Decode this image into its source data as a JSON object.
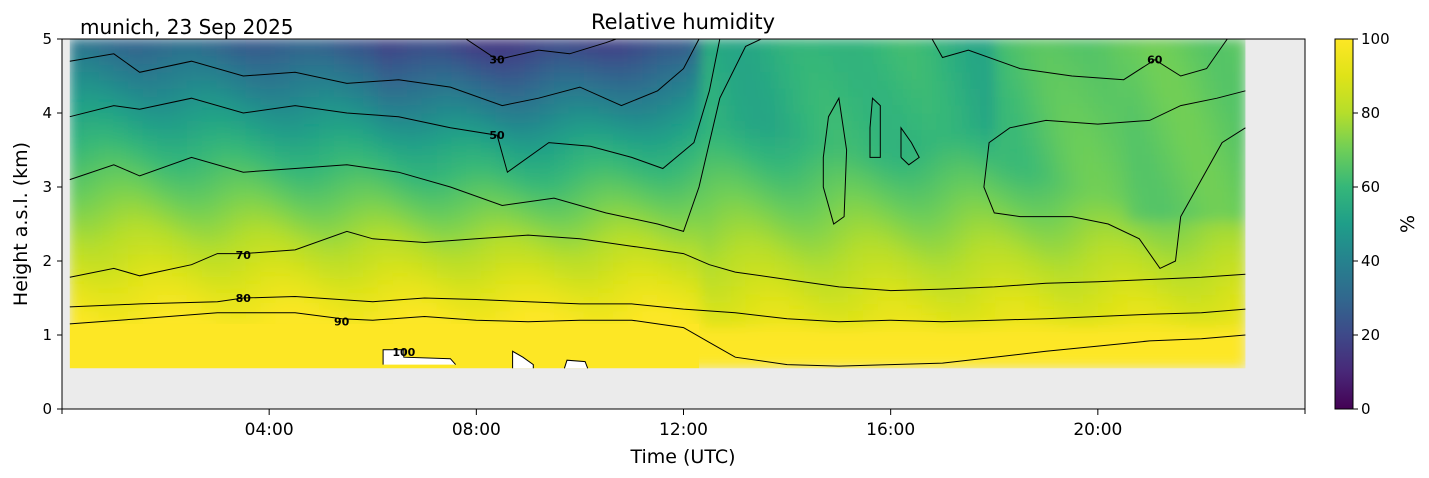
{
  "chart_data": {
    "type": "heatmap",
    "title": "Relative humidity",
    "location_date": "munich, 23 Sep 2025",
    "xlabel": "Time (UTC)",
    "ylabel": "Height a.s.l. (km)",
    "xlim": [
      0,
      24
    ],
    "ylim": [
      0,
      5
    ],
    "data_extent": {
      "x": [
        0.15,
        22.85
      ],
      "y": [
        0.55,
        5
      ]
    },
    "x_ticks": [
      {
        "value": 4,
        "label": "04:00"
      },
      {
        "value": 8,
        "label": "08:00"
      },
      {
        "value": 12,
        "label": "12:00"
      },
      {
        "value": 16,
        "label": "16:00"
      },
      {
        "value": 20,
        "label": "20:00"
      }
    ],
    "x_minor_ticks": [
      0,
      24
    ],
    "y_ticks": [
      {
        "value": 0,
        "label": "0"
      },
      {
        "value": 1,
        "label": "1"
      },
      {
        "value": 2,
        "label": "2"
      },
      {
        "value": 3,
        "label": "3"
      },
      {
        "value": 4,
        "label": "4"
      },
      {
        "value": 5,
        "label": "5"
      }
    ],
    "colorbar": {
      "label": "%",
      "range": [
        0,
        100
      ],
      "colormap": "viridis",
      "ticks": [
        {
          "value": 0,
          "label": "0"
        },
        {
          "value": 20,
          "label": "20"
        },
        {
          "value": 40,
          "label": "40"
        },
        {
          "value": 60,
          "label": "60"
        },
        {
          "value": 80,
          "label": "80"
        },
        {
          "value": 100,
          "label": "100"
        }
      ]
    },
    "contour_levels": [
      30,
      40,
      50,
      60,
      70,
      80,
      90,
      100
    ],
    "contours": [
      {
        "level": 90,
        "label": "90",
        "label_x": 5.4,
        "label_y": 1.18,
        "points": [
          [
            0.15,
            1.15
          ],
          [
            1.5,
            1.22
          ],
          [
            3,
            1.3
          ],
          [
            4.5,
            1.3
          ],
          [
            5.4,
            1.22
          ],
          [
            6,
            1.2
          ],
          [
            7,
            1.25
          ],
          [
            8,
            1.2
          ],
          [
            9,
            1.18
          ],
          [
            10,
            1.2
          ],
          [
            11,
            1.2
          ],
          [
            12,
            1.1
          ],
          [
            12.5,
            0.9
          ],
          [
            13,
            0.7
          ],
          [
            14,
            0.6
          ],
          [
            15,
            0.58
          ],
          [
            16,
            0.6
          ],
          [
            17,
            0.62
          ],
          [
            18,
            0.7
          ],
          [
            19,
            0.78
          ],
          [
            20,
            0.85
          ],
          [
            21,
            0.92
          ],
          [
            22,
            0.95
          ],
          [
            22.85,
            1.0
          ]
        ]
      },
      {
        "level": 80,
        "label": "80",
        "label_x": 3.5,
        "label_y": 1.5,
        "points": [
          [
            0.15,
            1.38
          ],
          [
            1.5,
            1.42
          ],
          [
            3,
            1.45
          ],
          [
            3.5,
            1.5
          ],
          [
            4.5,
            1.52
          ],
          [
            6,
            1.45
          ],
          [
            7,
            1.5
          ],
          [
            8,
            1.48
          ],
          [
            9,
            1.45
          ],
          [
            10,
            1.42
          ],
          [
            11,
            1.42
          ],
          [
            12,
            1.35
          ],
          [
            13,
            1.3
          ],
          [
            14,
            1.22
          ],
          [
            15,
            1.18
          ],
          [
            16,
            1.2
          ],
          [
            17,
            1.18
          ],
          [
            18,
            1.2
          ],
          [
            19,
            1.22
          ],
          [
            20,
            1.25
          ],
          [
            21,
            1.28
          ],
          [
            22,
            1.3
          ],
          [
            22.85,
            1.35
          ]
        ]
      },
      {
        "level": 70,
        "label": "70",
        "label_x": 3.5,
        "label_y": 2.08,
        "points": [
          [
            0.15,
            1.78
          ],
          [
            1,
            1.9
          ],
          [
            1.5,
            1.8
          ],
          [
            2.5,
            1.95
          ],
          [
            3,
            2.1
          ],
          [
            3.5,
            2.1
          ],
          [
            4.5,
            2.15
          ],
          [
            5.5,
            2.4
          ],
          [
            6,
            2.3
          ],
          [
            7,
            2.25
          ],
          [
            8,
            2.3
          ],
          [
            9,
            2.35
          ],
          [
            10,
            2.3
          ],
          [
            11,
            2.2
          ],
          [
            12,
            2.1
          ],
          [
            12.5,
            1.95
          ],
          [
            13,
            1.85
          ],
          [
            14,
            1.75
          ],
          [
            15,
            1.65
          ],
          [
            16,
            1.6
          ],
          [
            17,
            1.62
          ],
          [
            18,
            1.65
          ],
          [
            19,
            1.7
          ],
          [
            20,
            1.72
          ],
          [
            21,
            1.75
          ],
          [
            22,
            1.78
          ],
          [
            22.85,
            1.82
          ]
        ]
      },
      {
        "level": 60,
        "label": "60",
        "label_x": 21.1,
        "label_y": 4.72,
        "points": [
          [
            0.15,
            3.1
          ],
          [
            1,
            3.3
          ],
          [
            1.5,
            3.15
          ],
          [
            2.5,
            3.4
          ],
          [
            3.5,
            3.2
          ],
          [
            4.5,
            3.25
          ],
          [
            5.5,
            3.3
          ],
          [
            6.5,
            3.2
          ],
          [
            7.5,
            3.0
          ],
          [
            8.5,
            2.75
          ],
          [
            9.5,
            2.85
          ],
          [
            10.5,
            2.65
          ],
          [
            11.5,
            2.5
          ],
          [
            12,
            2.4
          ],
          [
            12.3,
            3.0
          ],
          [
            12.7,
            4.2
          ],
          [
            13.2,
            4.9
          ],
          [
            13.5,
            5.0
          ]
        ]
      },
      {
        "level": 60,
        "points": [
          [
            16.8,
            5.0
          ],
          [
            17,
            4.75
          ],
          [
            17.5,
            4.85
          ],
          [
            18.5,
            4.6
          ],
          [
            19.5,
            4.5
          ],
          [
            20.5,
            4.45
          ],
          [
            21.1,
            4.72
          ],
          [
            21.6,
            4.5
          ],
          [
            22.1,
            4.6
          ],
          [
            22.4,
            4.9
          ],
          [
            22.5,
            5.0
          ]
        ]
      },
      {
        "level": 60,
        "points": [
          [
            22.85,
            3.8
          ],
          [
            22.4,
            3.6
          ],
          [
            21.6,
            2.6
          ],
          [
            21.5,
            2.0
          ],
          [
            21.2,
            1.9
          ],
          [
            20.8,
            2.3
          ],
          [
            20.2,
            2.5
          ],
          [
            19.5,
            2.6
          ],
          [
            18.5,
            2.6
          ],
          [
            18,
            2.65
          ],
          [
            17.8,
            3.0
          ],
          [
            17.9,
            3.6
          ],
          [
            18.3,
            3.8
          ],
          [
            19,
            3.9
          ],
          [
            20,
            3.85
          ],
          [
            21,
            3.9
          ],
          [
            21.6,
            4.1
          ],
          [
            22.3,
            4.2
          ],
          [
            22.85,
            4.3
          ]
        ]
      },
      {
        "level": 60,
        "points": [
          [
            14.7,
            3.4
          ],
          [
            14.8,
            3.95
          ],
          [
            15,
            4.2
          ],
          [
            15.15,
            3.5
          ],
          [
            15.1,
            2.6
          ],
          [
            14.9,
            2.5
          ],
          [
            14.7,
            3.0
          ],
          [
            14.7,
            3.4
          ]
        ]
      },
      {
        "level": 60,
        "points": [
          [
            15.6,
            3.8
          ],
          [
            15.65,
            4.2
          ],
          [
            15.8,
            4.1
          ],
          [
            15.8,
            3.4
          ],
          [
            15.6,
            3.4
          ],
          [
            15.6,
            3.8
          ]
        ]
      },
      {
        "level": 60,
        "points": [
          [
            16.2,
            3.4
          ],
          [
            16.2,
            3.8
          ],
          [
            16.4,
            3.6
          ],
          [
            16.55,
            3.4
          ],
          [
            16.35,
            3.3
          ],
          [
            16.2,
            3.4
          ]
        ]
      },
      {
        "level": 50,
        "label": "50",
        "label_x": 8.4,
        "label_y": 3.7,
        "points": [
          [
            0.15,
            3.95
          ],
          [
            1,
            4.1
          ],
          [
            1.5,
            4.05
          ],
          [
            2.5,
            4.2
          ],
          [
            3.5,
            4.0
          ],
          [
            4.5,
            4.1
          ],
          [
            5.5,
            4.0
          ],
          [
            6.5,
            3.95
          ],
          [
            7.5,
            3.8
          ],
          [
            8.4,
            3.7
          ],
          [
            8.6,
            3.2
          ],
          [
            9.4,
            3.6
          ],
          [
            10.2,
            3.55
          ],
          [
            11,
            3.4
          ],
          [
            11.6,
            3.25
          ],
          [
            12.2,
            3.6
          ],
          [
            12.5,
            4.3
          ],
          [
            12.7,
            5.0
          ]
        ]
      },
      {
        "level": 40,
        "points": [
          [
            0.15,
            4.7
          ],
          [
            1,
            4.8
          ],
          [
            1.5,
            4.55
          ],
          [
            2.5,
            4.7
          ],
          [
            3.5,
            4.5
          ],
          [
            4.5,
            4.55
          ],
          [
            5.5,
            4.4
          ],
          [
            6.5,
            4.45
          ],
          [
            7.5,
            4.35
          ],
          [
            8.5,
            4.1
          ],
          [
            9.2,
            4.2
          ],
          [
            10,
            4.35
          ],
          [
            10.8,
            4.1
          ],
          [
            11.5,
            4.3
          ],
          [
            12,
            4.6
          ],
          [
            12.3,
            5.0
          ]
        ]
      },
      {
        "level": 30,
        "label": "30",
        "label_x": 8.4,
        "label_y": 4.72,
        "points": [
          [
            7.8,
            5.0
          ],
          [
            8.4,
            4.72
          ],
          [
            9.2,
            4.85
          ],
          [
            9.8,
            4.8
          ],
          [
            10.5,
            4.95
          ],
          [
            10.7,
            5.0
          ]
        ]
      },
      {
        "level": 100,
        "label": "100",
        "label_x": 6.6,
        "label_y": 0.77,
        "points": [
          [
            6.2,
            0.6
          ],
          [
            6.2,
            0.8
          ],
          [
            6.6,
            0.8
          ],
          [
            6.6,
            0.7
          ],
          [
            7.5,
            0.68
          ],
          [
            7.6,
            0.6
          ]
        ]
      },
      {
        "level": 100,
        "points": [
          [
            8.7,
            0.55
          ],
          [
            8.7,
            0.78
          ],
          [
            8.9,
            0.7
          ],
          [
            9.1,
            0.6
          ],
          [
            9.1,
            0.55
          ]
        ]
      },
      {
        "level": 100,
        "points": [
          [
            9.7,
            0.55
          ],
          [
            9.75,
            0.66
          ],
          [
            10.1,
            0.64
          ],
          [
            10.15,
            0.55
          ]
        ]
      }
    ],
    "field_description_removed": true
  }
}
